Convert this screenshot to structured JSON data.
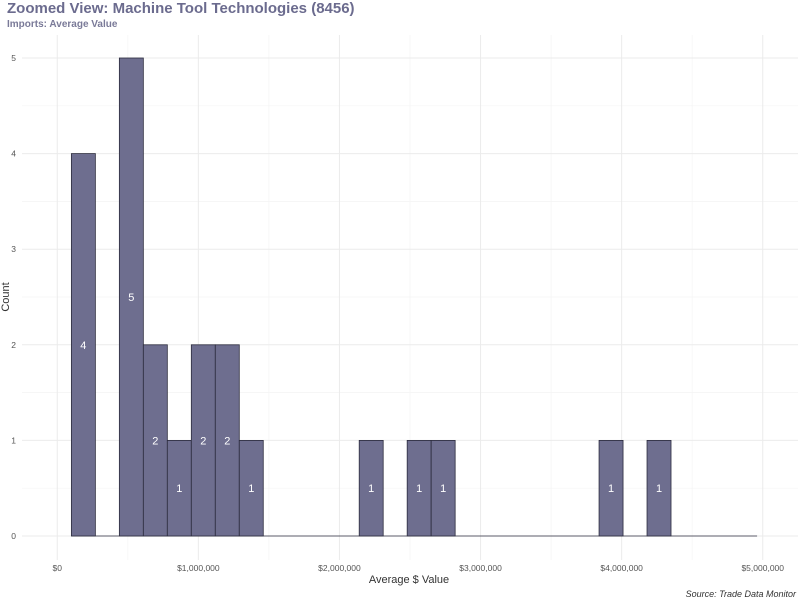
{
  "chart_data": {
    "type": "histogram",
    "title": "Zoomed View: Machine Tool Technologies (8456)",
    "subtitle": "Imports: Average Value",
    "xlabel": "Average $ Value",
    "ylabel": "Count",
    "caption": "Source: Trade Data Monitor",
    "xlim": [
      -250000,
      5250000
    ],
    "ylim": [
      0,
      5
    ],
    "x_ticks": [
      {
        "value": 0,
        "label": "$0"
      },
      {
        "value": 1000000,
        "label": "$1,000,000"
      },
      {
        "value": 2000000,
        "label": "$2,000,000"
      },
      {
        "value": 3000000,
        "label": "$3,000,000"
      },
      {
        "value": 4000000,
        "label": "$4,000,000"
      },
      {
        "value": 5000000,
        "label": "$5,000,000"
      }
    ],
    "y_ticks": [
      0,
      1,
      2,
      3,
      4,
      5
    ],
    "bin_width": 170000,
    "bins": [
      {
        "start": 100000,
        "count": 4,
        "label": "4"
      },
      {
        "start": 440000,
        "count": 5,
        "label": "5"
      },
      {
        "start": 610000,
        "count": 2,
        "label": "2"
      },
      {
        "start": 780000,
        "count": 1,
        "label": "1"
      },
      {
        "start": 950000,
        "count": 2,
        "label": "2"
      },
      {
        "start": 1120000,
        "count": 2,
        "label": "2"
      },
      {
        "start": 1290000,
        "count": 1,
        "label": "1"
      },
      {
        "start": 2140000,
        "count": 1,
        "label": "1"
      },
      {
        "start": 2480000,
        "count": 1,
        "label": "1"
      },
      {
        "start": 2650000,
        "count": 1,
        "label": "1"
      },
      {
        "start": 3840000,
        "count": 1,
        "label": "1"
      },
      {
        "start": 4180000,
        "count": 1,
        "label": "1"
      }
    ],
    "baseline_range": [
      100000,
      4960000
    ],
    "grid": true
  }
}
